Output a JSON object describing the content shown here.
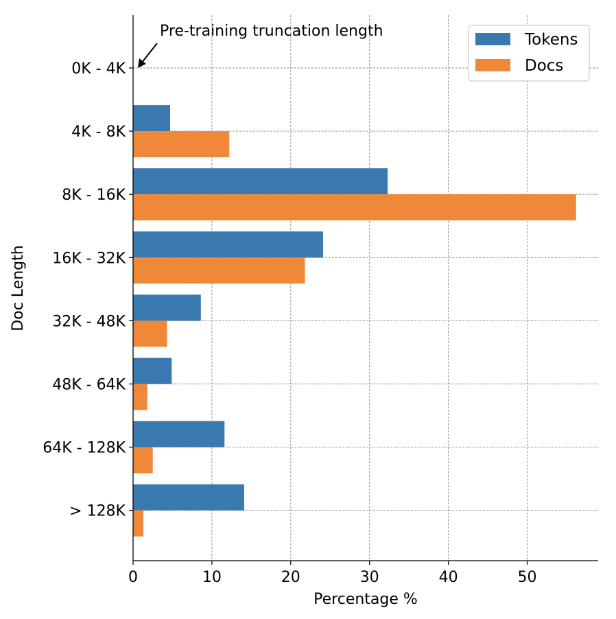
{
  "chart_data": {
    "type": "bar",
    "orientation": "horizontal",
    "categories": [
      "0K - 4K",
      "4K - 8K",
      "8K - 16K",
      "16K - 32K",
      "32K - 48K",
      "48K - 64K",
      "64K - 128K",
      "> 128K"
    ],
    "series": [
      {
        "name": "Tokens",
        "color": "#3a78b0",
        "values": [
          0,
          4.7,
          32.3,
          24.1,
          8.6,
          4.9,
          11.6,
          14.1
        ]
      },
      {
        "name": "Docs",
        "color": "#f0883a",
        "values": [
          0,
          12.2,
          56.2,
          21.8,
          4.3,
          1.8,
          2.5,
          1.3
        ]
      }
    ],
    "title": "",
    "xlabel": "Percentage %",
    "ylabel": "Doc Length",
    "xlim": [
      0,
      59
    ],
    "xticks": [
      0,
      10,
      20,
      30,
      40,
      50
    ],
    "grid": true,
    "legend": "top-right",
    "annotation": {
      "text": "Pre-training truncation length",
      "points_to": "0K - 4K"
    }
  }
}
